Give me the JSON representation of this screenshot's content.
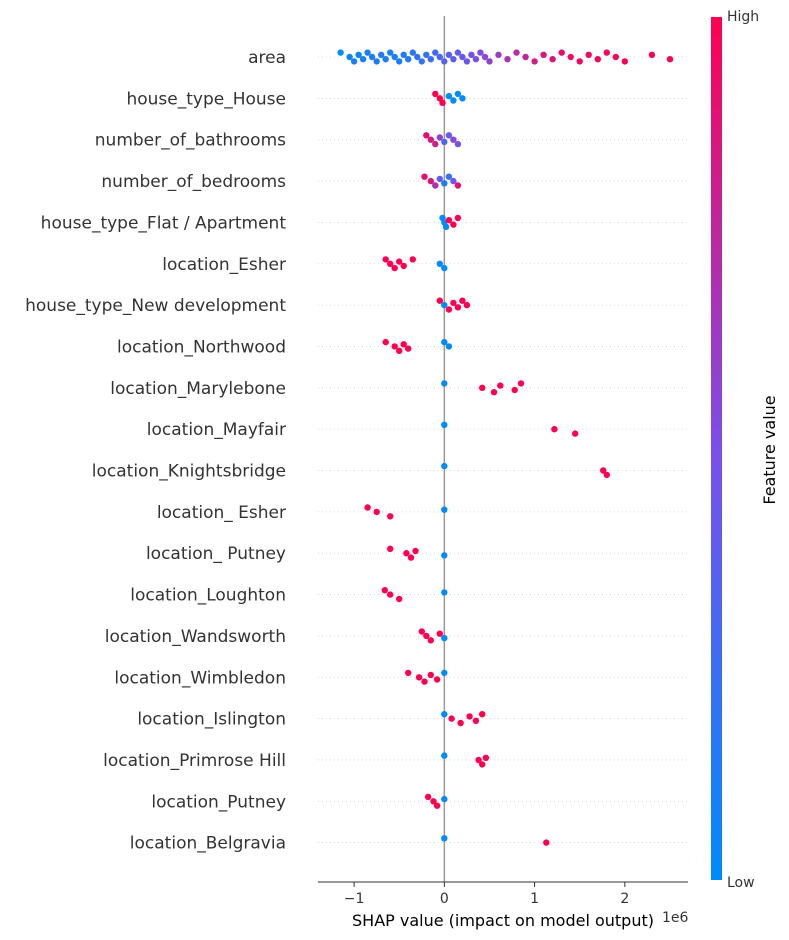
{
  "chart_data": {
    "type": "scatter",
    "subtype": "shap-beeswarm",
    "xlabel": "SHAP value (impact on model output)",
    "x_offset_label": "1e6",
    "xlim": [
      -1.4,
      2.7
    ],
    "xticks": [
      -1,
      0,
      1,
      2
    ],
    "xtick_labels": [
      "−1",
      "0",
      "1",
      "2"
    ],
    "colorbar": {
      "label": "Feature value",
      "high": "High",
      "low": "Low",
      "low_color": "#008bfb",
      "high_color": "#ff0051"
    },
    "features": [
      {
        "name": "area",
        "points": [
          [
            -1.15,
            0.0
          ],
          [
            -1.05,
            0.05
          ],
          [
            -1.0,
            0.1
          ],
          [
            -0.95,
            0.05
          ],
          [
            -0.9,
            0.08
          ],
          [
            -0.85,
            0.1
          ],
          [
            -0.8,
            0.12
          ],
          [
            -0.75,
            0.12
          ],
          [
            -0.7,
            0.14
          ],
          [
            -0.65,
            0.12
          ],
          [
            -0.6,
            0.1
          ],
          [
            -0.55,
            0.12
          ],
          [
            -0.5,
            0.1
          ],
          [
            -0.45,
            0.12
          ],
          [
            -0.4,
            0.14
          ],
          [
            -0.35,
            0.18
          ],
          [
            -0.3,
            0.2
          ],
          [
            -0.25,
            0.2
          ],
          [
            -0.2,
            0.22
          ],
          [
            -0.15,
            0.25
          ],
          [
            -0.1,
            0.28
          ],
          [
            -0.05,
            0.3
          ],
          [
            0.0,
            0.33
          ],
          [
            0.05,
            0.35
          ],
          [
            0.1,
            0.38
          ],
          [
            0.15,
            0.4
          ],
          [
            0.2,
            0.42
          ],
          [
            0.25,
            0.45
          ],
          [
            0.3,
            0.48
          ],
          [
            0.35,
            0.5
          ],
          [
            0.4,
            0.52
          ],
          [
            0.45,
            0.55
          ],
          [
            0.5,
            0.58
          ],
          [
            0.6,
            0.62
          ],
          [
            0.7,
            0.68
          ],
          [
            0.8,
            0.72
          ],
          [
            0.9,
            0.78
          ],
          [
            1.0,
            0.82
          ],
          [
            1.1,
            0.86
          ],
          [
            1.2,
            0.88
          ],
          [
            1.3,
            0.9
          ],
          [
            1.4,
            0.92
          ],
          [
            1.5,
            0.94
          ],
          [
            1.6,
            0.95
          ],
          [
            1.7,
            0.96
          ],
          [
            1.8,
            0.96
          ],
          [
            1.9,
            0.97
          ],
          [
            2.0,
            0.98
          ],
          [
            2.3,
            1.0
          ],
          [
            2.5,
            1.0
          ]
        ]
      },
      {
        "name": "house_type_House",
        "points": [
          [
            -0.1,
            1.0
          ],
          [
            -0.05,
            1.0
          ],
          [
            -0.02,
            1.0
          ],
          [
            0.05,
            0.0
          ],
          [
            0.1,
            0.0
          ],
          [
            0.15,
            0.0
          ],
          [
            0.2,
            0.0
          ]
        ]
      },
      {
        "name": "number_of_bathrooms",
        "points": [
          [
            -0.2,
            0.9
          ],
          [
            -0.15,
            0.85
          ],
          [
            -0.1,
            0.8
          ],
          [
            -0.05,
            0.6
          ],
          [
            0.0,
            0.3
          ],
          [
            0.05,
            0.4
          ],
          [
            0.1,
            0.55
          ],
          [
            0.15,
            0.5
          ]
        ]
      },
      {
        "name": "number_of_bedrooms",
        "points": [
          [
            -0.22,
            0.9
          ],
          [
            -0.15,
            0.85
          ],
          [
            -0.1,
            0.7
          ],
          [
            -0.05,
            0.4
          ],
          [
            0.0,
            0.1
          ],
          [
            0.05,
            0.2
          ],
          [
            0.1,
            0.45
          ],
          [
            0.15,
            0.9
          ]
        ]
      },
      {
        "name": "house_type_Flat / Apartment",
        "points": [
          [
            -0.02,
            0.0
          ],
          [
            0.0,
            0.0
          ],
          [
            0.02,
            0.0
          ],
          [
            0.05,
            1.0
          ],
          [
            0.1,
            1.0
          ],
          [
            0.15,
            1.0
          ]
        ]
      },
      {
        "name": "location_Esher",
        "points": [
          [
            -0.65,
            1.0
          ],
          [
            -0.6,
            1.0
          ],
          [
            -0.55,
            1.0
          ],
          [
            -0.5,
            1.0
          ],
          [
            -0.45,
            1.0
          ],
          [
            -0.35,
            1.0
          ],
          [
            -0.05,
            0.0
          ],
          [
            0.0,
            0.0
          ]
        ]
      },
      {
        "name": "house_type_New development",
        "points": [
          [
            -0.05,
            1.0
          ],
          [
            0.0,
            0.0
          ],
          [
            0.05,
            1.0
          ],
          [
            0.1,
            1.0
          ],
          [
            0.15,
            1.0
          ],
          [
            0.2,
            1.0
          ],
          [
            0.25,
            1.0
          ]
        ]
      },
      {
        "name": "location_Northwood",
        "points": [
          [
            -0.65,
            1.0
          ],
          [
            -0.55,
            1.0
          ],
          [
            -0.5,
            1.0
          ],
          [
            -0.45,
            1.0
          ],
          [
            -0.4,
            1.0
          ],
          [
            0.0,
            0.0
          ],
          [
            0.05,
            0.0
          ]
        ]
      },
      {
        "name": "location_Marylebone",
        "points": [
          [
            0.0,
            0.0
          ],
          [
            0.42,
            1.0
          ],
          [
            0.55,
            1.0
          ],
          [
            0.62,
            1.0
          ],
          [
            0.78,
            1.0
          ],
          [
            0.85,
            1.0
          ]
        ]
      },
      {
        "name": "location_Mayfair",
        "points": [
          [
            0.0,
            0.0
          ],
          [
            1.22,
            1.0
          ],
          [
            1.45,
            1.0
          ]
        ]
      },
      {
        "name": "location_Knightsbridge",
        "points": [
          [
            0.0,
            0.0
          ],
          [
            1.76,
            1.0
          ],
          [
            1.8,
            1.0
          ]
        ]
      },
      {
        "name": "location_ Esher",
        "points": [
          [
            -0.85,
            1.0
          ],
          [
            -0.75,
            1.0
          ],
          [
            -0.6,
            1.0
          ],
          [
            0.0,
            0.0
          ]
        ]
      },
      {
        "name": "location_ Putney",
        "points": [
          [
            -0.6,
            1.0
          ],
          [
            -0.42,
            1.0
          ],
          [
            -0.37,
            1.0
          ],
          [
            -0.32,
            1.0
          ],
          [
            0.0,
            0.0
          ]
        ]
      },
      {
        "name": "location_Loughton",
        "points": [
          [
            -0.66,
            1.0
          ],
          [
            -0.6,
            1.0
          ],
          [
            -0.5,
            1.0
          ],
          [
            0.0,
            0.0
          ]
        ]
      },
      {
        "name": "location_Wandsworth",
        "points": [
          [
            -0.25,
            1.0
          ],
          [
            -0.2,
            1.0
          ],
          [
            -0.15,
            1.0
          ],
          [
            -0.05,
            1.0
          ],
          [
            0.0,
            0.0
          ]
        ]
      },
      {
        "name": "location_Wimbledon",
        "points": [
          [
            -0.4,
            1.0
          ],
          [
            -0.28,
            1.0
          ],
          [
            -0.22,
            1.0
          ],
          [
            -0.15,
            1.0
          ],
          [
            -0.08,
            1.0
          ],
          [
            0.0,
            0.0
          ]
        ]
      },
      {
        "name": "location_Islington",
        "points": [
          [
            0.0,
            0.0
          ],
          [
            0.08,
            1.0
          ],
          [
            0.18,
            1.0
          ],
          [
            0.28,
            1.0
          ],
          [
            0.35,
            1.0
          ],
          [
            0.42,
            1.0
          ]
        ]
      },
      {
        "name": "location_Primrose Hill",
        "points": [
          [
            0.0,
            0.0
          ],
          [
            0.38,
            1.0
          ],
          [
            0.42,
            1.0
          ],
          [
            0.46,
            1.0
          ]
        ]
      },
      {
        "name": "location_Putney",
        "points": [
          [
            -0.18,
            1.0
          ],
          [
            -0.12,
            1.0
          ],
          [
            -0.08,
            1.0
          ],
          [
            0.0,
            0.0
          ]
        ]
      },
      {
        "name": "location_Belgravia",
        "points": [
          [
            0.0,
            0.0
          ],
          [
            1.13,
            1.0
          ]
        ]
      }
    ]
  }
}
